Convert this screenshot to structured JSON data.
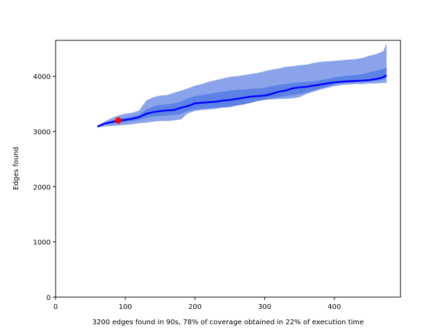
{
  "chart_data": {
    "type": "area",
    "title": "",
    "xlabel": "3200 edges found in 90s, 78% of coverage obtained in 22% of execution time",
    "ylabel": "Edges found",
    "xlim": [
      0,
      495
    ],
    "ylim": [
      0,
      4650
    ],
    "xticks": [
      0,
      100,
      200,
      300,
      400
    ],
    "yticks": [
      0,
      1000,
      2000,
      3000,
      4000
    ],
    "grid": false,
    "x": [
      60,
      70,
      80,
      90,
      100,
      110,
      120,
      130,
      140,
      150,
      160,
      170,
      180,
      190,
      200,
      210,
      220,
      230,
      240,
      250,
      260,
      270,
      280,
      290,
      300,
      310,
      320,
      330,
      340,
      350,
      360,
      370,
      380,
      390,
      400,
      410,
      420,
      430,
      440,
      450,
      460,
      470,
      475
    ],
    "series": [
      {
        "role": "outer-upper",
        "color": "#8ba3ea",
        "values": [
          3090,
          3180,
          3240,
          3290,
          3320,
          3340,
          3380,
          3560,
          3620,
          3650,
          3660,
          3700,
          3740,
          3780,
          3830,
          3860,
          3900,
          3930,
          3960,
          3990,
          4000,
          4020,
          4040,
          4060,
          4090,
          4120,
          4140,
          4170,
          4180,
          4200,
          4210,
          4240,
          4260,
          4270,
          4280,
          4290,
          4300,
          4310,
          4330,
          4370,
          4400,
          4450,
          4590
        ]
      },
      {
        "role": "inner-upper",
        "color": "#5c82e6",
        "values": [
          3090,
          3150,
          3190,
          3230,
          3250,
          3270,
          3300,
          3400,
          3450,
          3480,
          3490,
          3510,
          3540,
          3600,
          3640,
          3660,
          3680,
          3700,
          3720,
          3740,
          3750,
          3760,
          3770,
          3780,
          3790,
          3820,
          3840,
          3860,
          3880,
          3890,
          3900,
          3910,
          3930,
          3950,
          3980,
          4000,
          4010,
          4020,
          4040,
          4070,
          4100,
          4130,
          4160
        ]
      },
      {
        "role": "mean",
        "color": "#0000ff",
        "values": [
          3090,
          3140,
          3170,
          3195,
          3210,
          3230,
          3260,
          3320,
          3350,
          3370,
          3380,
          3390,
          3430,
          3460,
          3510,
          3520,
          3530,
          3540,
          3560,
          3570,
          3590,
          3610,
          3630,
          3640,
          3650,
          3680,
          3720,
          3740,
          3780,
          3800,
          3810,
          3830,
          3850,
          3870,
          3890,
          3900,
          3910,
          3915,
          3920,
          3930,
          3950,
          3980,
          4020
        ]
      },
      {
        "role": "inner-lower",
        "color": "#5c82e6",
        "values": [
          3080,
          3120,
          3140,
          3160,
          3170,
          3190,
          3210,
          3250,
          3270,
          3280,
          3290,
          3300,
          3320,
          3370,
          3400,
          3410,
          3420,
          3430,
          3440,
          3450,
          3470,
          3490,
          3520,
          3550,
          3580,
          3600,
          3620,
          3640,
          3660,
          3680,
          3710,
          3740,
          3780,
          3810,
          3850,
          3870,
          3880,
          3890,
          3900,
          3910,
          3920,
          3940,
          3960
        ]
      },
      {
        "role": "outer-lower",
        "color": "#8ba3ea",
        "values": [
          3070,
          3090,
          3100,
          3110,
          3120,
          3130,
          3150,
          3160,
          3180,
          3190,
          3190,
          3200,
          3220,
          3330,
          3370,
          3390,
          3400,
          3410,
          3430,
          3440,
          3470,
          3500,
          3520,
          3550,
          3570,
          3580,
          3590,
          3590,
          3600,
          3620,
          3680,
          3720,
          3760,
          3790,
          3820,
          3840,
          3850,
          3860,
          3860,
          3870,
          3870,
          3880,
          3880
        ]
      }
    ],
    "highlight_point": {
      "x": 90,
      "y": 3200,
      "color": "#ff0000"
    }
  }
}
